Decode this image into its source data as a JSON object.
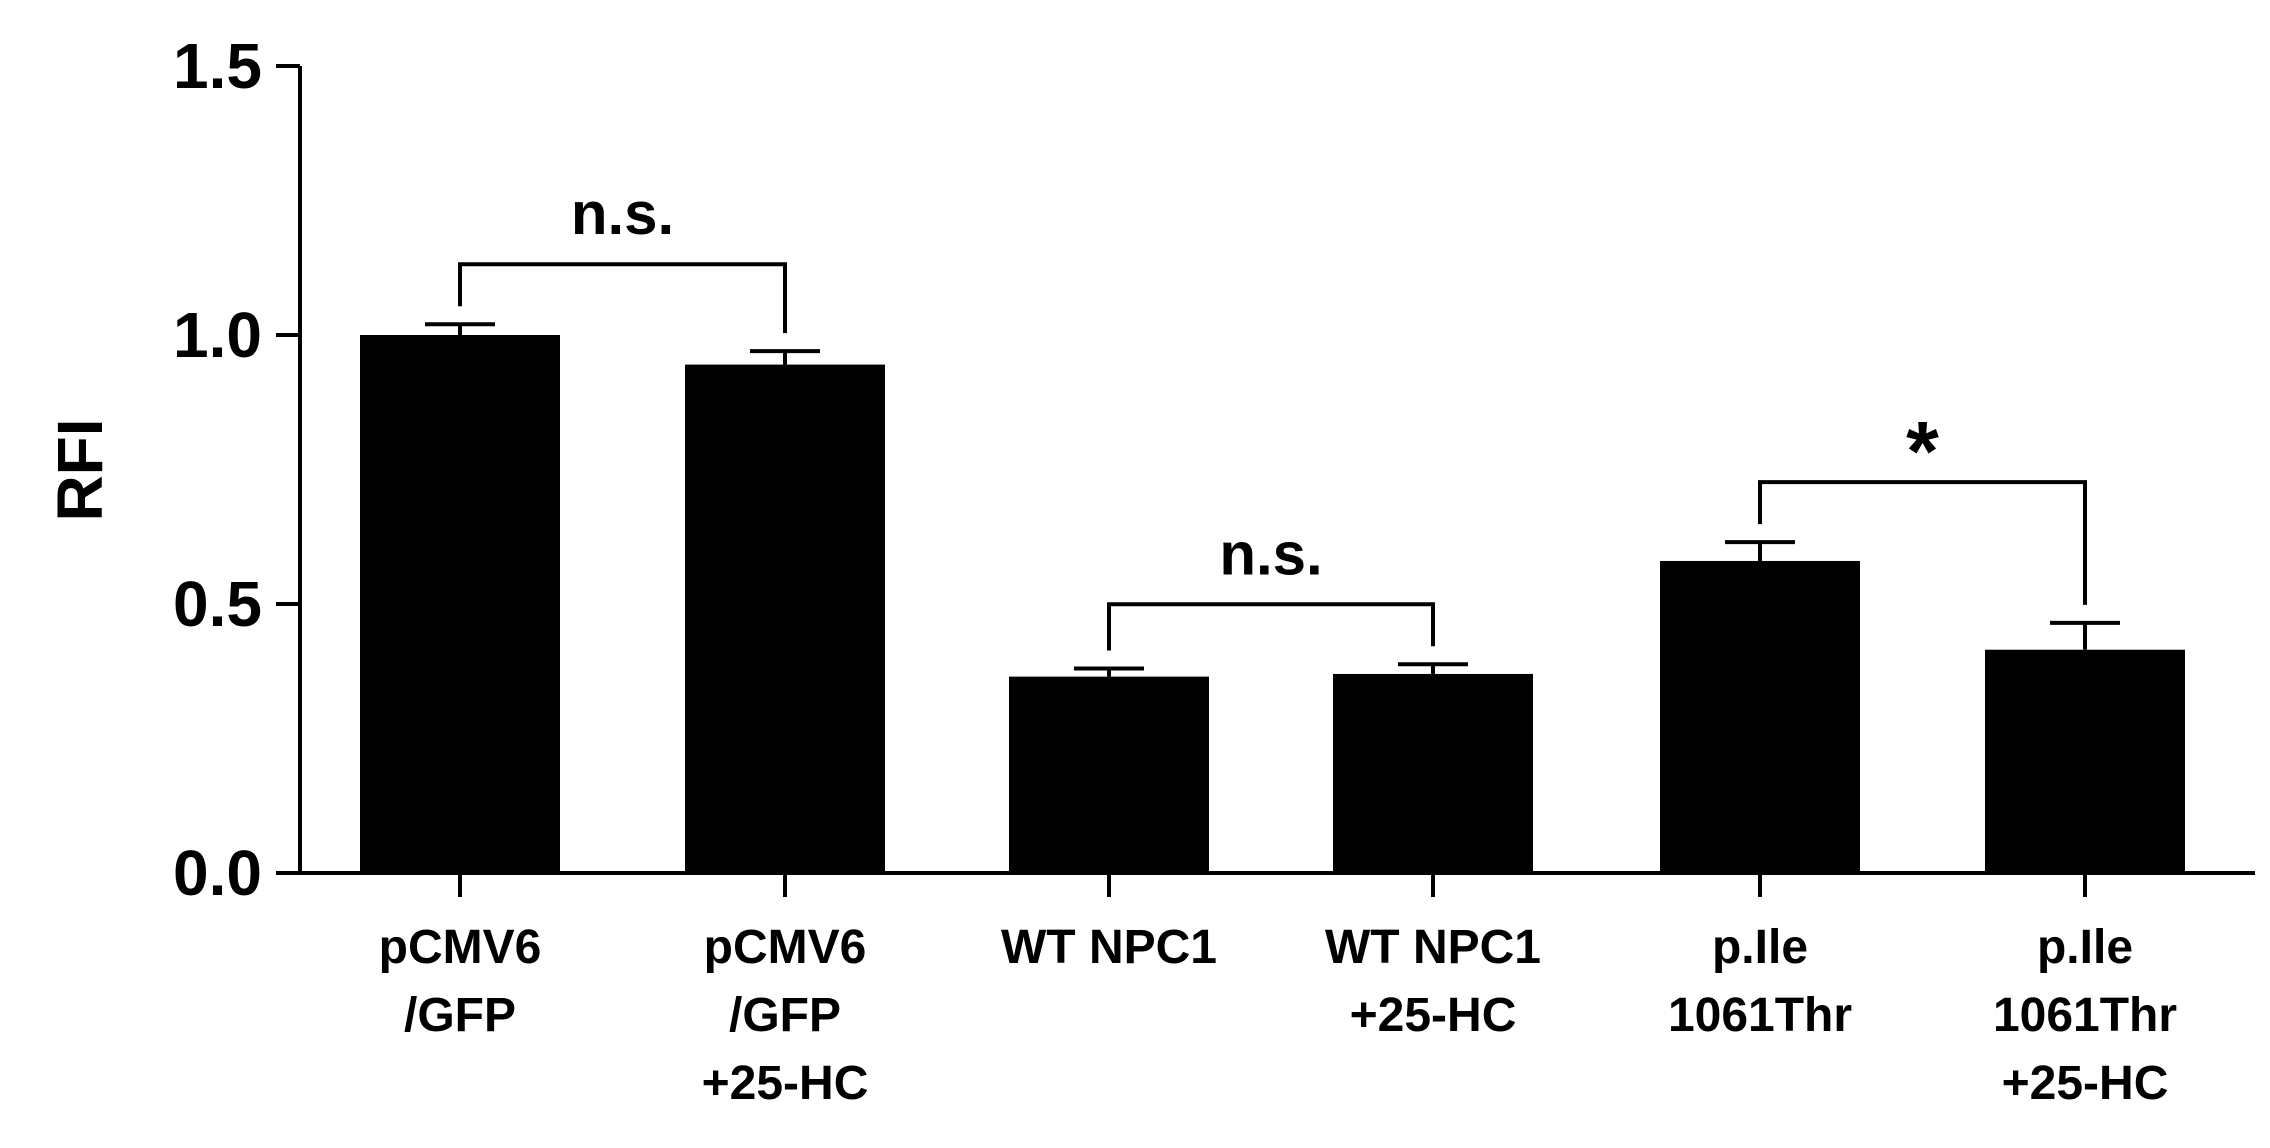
{
  "chart_data": {
    "type": "bar",
    "ylabel": "RFI",
    "ylim": [
      0,
      1.5
    ],
    "yticks": [
      "0.0",
      "0.5",
      "1.0",
      "1.5"
    ],
    "categories": [
      [
        "pCMV6",
        "/GFP"
      ],
      [
        "pCMV6",
        "/GFP",
        "+25-HC"
      ],
      [
        "WT NPC1"
      ],
      [
        "WT NPC1",
        "+25-HC"
      ],
      [
        "p.Ile",
        "1061Thr"
      ],
      [
        "p.Ile",
        "1061Thr",
        "+25-HC"
      ]
    ],
    "values": [
      1.0,
      0.945,
      0.365,
      0.37,
      0.58,
      0.415
    ],
    "errors": [
      0.02,
      0.025,
      0.015,
      0.018,
      0.035,
      0.05
    ],
    "bar_color": "#000000",
    "significance": [
      {
        "from": 0,
        "to": 1,
        "label": "n.s."
      },
      {
        "from": 2,
        "to": 3,
        "label": "n.s."
      },
      {
        "from": 4,
        "to": 5,
        "label": "*"
      }
    ]
  }
}
